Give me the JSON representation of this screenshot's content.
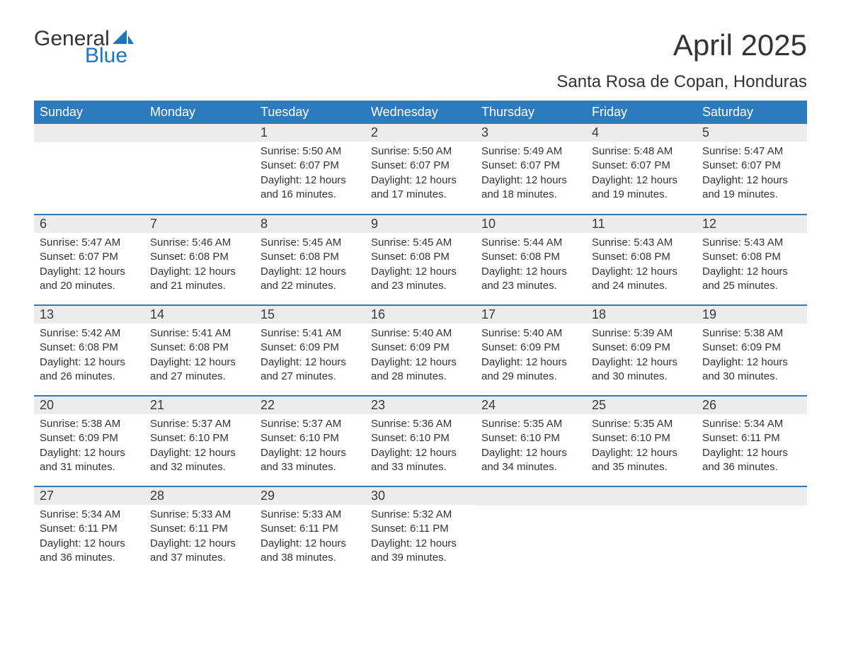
{
  "brand": {
    "word1": "General",
    "word2": "Blue",
    "sail_color": "#1976c1",
    "text_color": "#333333"
  },
  "title": {
    "month": "April 2025",
    "location": "Santa Rosa de Copan, Honduras"
  },
  "style": {
    "header_bg": "#2c7bbf",
    "header_fg": "#ffffff",
    "daynum_bg": "#ececec",
    "row_border": "#2c7bbf",
    "body_bg": "#ffffff",
    "text_color": "#333333",
    "month_fontsize": 42,
    "location_fontsize": 24,
    "dayheader_fontsize": 18,
    "cell_fontsize": 15
  },
  "weekdays": [
    "Sunday",
    "Monday",
    "Tuesday",
    "Wednesday",
    "Thursday",
    "Friday",
    "Saturday"
  ],
  "weeks": [
    [
      null,
      null,
      {
        "n": "1",
        "sunrise": "Sunrise: 5:50 AM",
        "sunset": "Sunset: 6:07 PM",
        "daylight": "Daylight: 12 hours and 16 minutes."
      },
      {
        "n": "2",
        "sunrise": "Sunrise: 5:50 AM",
        "sunset": "Sunset: 6:07 PM",
        "daylight": "Daylight: 12 hours and 17 minutes."
      },
      {
        "n": "3",
        "sunrise": "Sunrise: 5:49 AM",
        "sunset": "Sunset: 6:07 PM",
        "daylight": "Daylight: 12 hours and 18 minutes."
      },
      {
        "n": "4",
        "sunrise": "Sunrise: 5:48 AM",
        "sunset": "Sunset: 6:07 PM",
        "daylight": "Daylight: 12 hours and 19 minutes."
      },
      {
        "n": "5",
        "sunrise": "Sunrise: 5:47 AM",
        "sunset": "Sunset: 6:07 PM",
        "daylight": "Daylight: 12 hours and 19 minutes."
      }
    ],
    [
      {
        "n": "6",
        "sunrise": "Sunrise: 5:47 AM",
        "sunset": "Sunset: 6:07 PM",
        "daylight": "Daylight: 12 hours and 20 minutes."
      },
      {
        "n": "7",
        "sunrise": "Sunrise: 5:46 AM",
        "sunset": "Sunset: 6:08 PM",
        "daylight": "Daylight: 12 hours and 21 minutes."
      },
      {
        "n": "8",
        "sunrise": "Sunrise: 5:45 AM",
        "sunset": "Sunset: 6:08 PM",
        "daylight": "Daylight: 12 hours and 22 minutes."
      },
      {
        "n": "9",
        "sunrise": "Sunrise: 5:45 AM",
        "sunset": "Sunset: 6:08 PM",
        "daylight": "Daylight: 12 hours and 23 minutes."
      },
      {
        "n": "10",
        "sunrise": "Sunrise: 5:44 AM",
        "sunset": "Sunset: 6:08 PM",
        "daylight": "Daylight: 12 hours and 23 minutes."
      },
      {
        "n": "11",
        "sunrise": "Sunrise: 5:43 AM",
        "sunset": "Sunset: 6:08 PM",
        "daylight": "Daylight: 12 hours and 24 minutes."
      },
      {
        "n": "12",
        "sunrise": "Sunrise: 5:43 AM",
        "sunset": "Sunset: 6:08 PM",
        "daylight": "Daylight: 12 hours and 25 minutes."
      }
    ],
    [
      {
        "n": "13",
        "sunrise": "Sunrise: 5:42 AM",
        "sunset": "Sunset: 6:08 PM",
        "daylight": "Daylight: 12 hours and 26 minutes."
      },
      {
        "n": "14",
        "sunrise": "Sunrise: 5:41 AM",
        "sunset": "Sunset: 6:08 PM",
        "daylight": "Daylight: 12 hours and 27 minutes."
      },
      {
        "n": "15",
        "sunrise": "Sunrise: 5:41 AM",
        "sunset": "Sunset: 6:09 PM",
        "daylight": "Daylight: 12 hours and 27 minutes."
      },
      {
        "n": "16",
        "sunrise": "Sunrise: 5:40 AM",
        "sunset": "Sunset: 6:09 PM",
        "daylight": "Daylight: 12 hours and 28 minutes."
      },
      {
        "n": "17",
        "sunrise": "Sunrise: 5:40 AM",
        "sunset": "Sunset: 6:09 PM",
        "daylight": "Daylight: 12 hours and 29 minutes."
      },
      {
        "n": "18",
        "sunrise": "Sunrise: 5:39 AM",
        "sunset": "Sunset: 6:09 PM",
        "daylight": "Daylight: 12 hours and 30 minutes."
      },
      {
        "n": "19",
        "sunrise": "Sunrise: 5:38 AM",
        "sunset": "Sunset: 6:09 PM",
        "daylight": "Daylight: 12 hours and 30 minutes."
      }
    ],
    [
      {
        "n": "20",
        "sunrise": "Sunrise: 5:38 AM",
        "sunset": "Sunset: 6:09 PM",
        "daylight": "Daylight: 12 hours and 31 minutes."
      },
      {
        "n": "21",
        "sunrise": "Sunrise: 5:37 AM",
        "sunset": "Sunset: 6:10 PM",
        "daylight": "Daylight: 12 hours and 32 minutes."
      },
      {
        "n": "22",
        "sunrise": "Sunrise: 5:37 AM",
        "sunset": "Sunset: 6:10 PM",
        "daylight": "Daylight: 12 hours and 33 minutes."
      },
      {
        "n": "23",
        "sunrise": "Sunrise: 5:36 AM",
        "sunset": "Sunset: 6:10 PM",
        "daylight": "Daylight: 12 hours and 33 minutes."
      },
      {
        "n": "24",
        "sunrise": "Sunrise: 5:35 AM",
        "sunset": "Sunset: 6:10 PM",
        "daylight": "Daylight: 12 hours and 34 minutes."
      },
      {
        "n": "25",
        "sunrise": "Sunrise: 5:35 AM",
        "sunset": "Sunset: 6:10 PM",
        "daylight": "Daylight: 12 hours and 35 minutes."
      },
      {
        "n": "26",
        "sunrise": "Sunrise: 5:34 AM",
        "sunset": "Sunset: 6:11 PM",
        "daylight": "Daylight: 12 hours and 36 minutes."
      }
    ],
    [
      {
        "n": "27",
        "sunrise": "Sunrise: 5:34 AM",
        "sunset": "Sunset: 6:11 PM",
        "daylight": "Daylight: 12 hours and 36 minutes."
      },
      {
        "n": "28",
        "sunrise": "Sunrise: 5:33 AM",
        "sunset": "Sunset: 6:11 PM",
        "daylight": "Daylight: 12 hours and 37 minutes."
      },
      {
        "n": "29",
        "sunrise": "Sunrise: 5:33 AM",
        "sunset": "Sunset: 6:11 PM",
        "daylight": "Daylight: 12 hours and 38 minutes."
      },
      {
        "n": "30",
        "sunrise": "Sunrise: 5:32 AM",
        "sunset": "Sunset: 6:11 PM",
        "daylight": "Daylight: 12 hours and 39 minutes."
      },
      null,
      null,
      null
    ]
  ]
}
